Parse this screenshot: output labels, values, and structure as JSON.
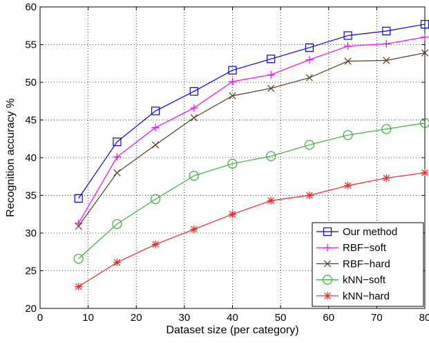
{
  "chart_data": {
    "type": "line",
    "title": "",
    "xlabel": "Dataset size (per category)",
    "ylabel": "Recognition accuracy %",
    "xlim": [
      0,
      80
    ],
    "ylim": [
      20,
      60
    ],
    "xticks": [
      0,
      10,
      20,
      30,
      40,
      50,
      60,
      70,
      80
    ],
    "yticks": [
      20,
      25,
      30,
      35,
      40,
      45,
      50,
      55,
      60
    ],
    "grid": true,
    "legend_position": "bottom-right",
    "x": [
      8,
      16,
      24,
      32,
      40,
      48,
      56,
      64,
      72,
      80
    ],
    "series": [
      {
        "name": "Our method",
        "color": "#0000ff",
        "marker": "square",
        "values": [
          34.6,
          42.1,
          46.2,
          48.8,
          51.6,
          53.1,
          54.6,
          56.2,
          56.8,
          57.7
        ]
      },
      {
        "name": "RBF−soft",
        "color": "#ff00ff",
        "marker": "plus",
        "values": [
          31.3,
          40.1,
          44.0,
          46.6,
          50.1,
          51.0,
          53.0,
          54.8,
          55.1,
          56.0
        ]
      },
      {
        "name": "RBF−hard",
        "color": "#5c3c1e",
        "marker": "x",
        "values": [
          30.9,
          38.0,
          41.7,
          45.3,
          48.2,
          49.2,
          50.6,
          52.8,
          52.9,
          53.9
        ]
      },
      {
        "name": "kNN−soft",
        "color": "#33b233",
        "marker": "circle",
        "values": [
          26.6,
          31.2,
          34.5,
          37.6,
          39.2,
          40.2,
          41.7,
          43.0,
          43.8,
          44.6
        ]
      },
      {
        "name": "kNN−hard",
        "color": "#ff2020",
        "marker": "asterisk",
        "values": [
          22.9,
          26.1,
          28.5,
          30.5,
          32.5,
          34.3,
          35.0,
          36.3,
          37.3,
          38.0
        ]
      }
    ]
  }
}
